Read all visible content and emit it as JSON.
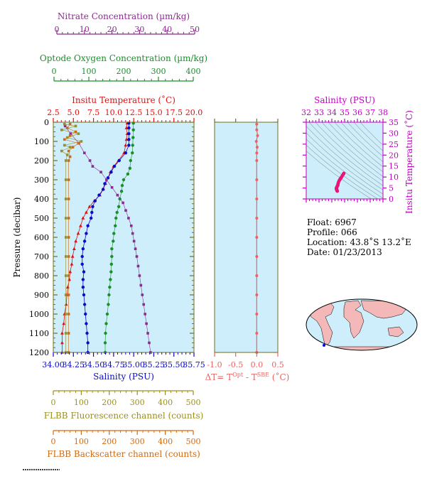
{
  "colors": {
    "nitrate": "#8b2a8f",
    "oxygen": "#1a8f2a",
    "temperature": "#e01010",
    "salinity": "#0a0ac8",
    "fluorescence": "#9a9020",
    "backscatter": "#d06a10",
    "dt": "#f06060",
    "ts_profile": "#e8157a",
    "ts_axis": "#c000c0",
    "panel_bg": "#cdeefa",
    "frame": "#707020"
  },
  "axes": {
    "nitrate": {
      "label": "Nitrate Concentration (µm/kg)",
      "ticks": [
        "0",
        "10",
        "20",
        "30",
        "40",
        "50"
      ]
    },
    "oxygen": {
      "label": "Optode Oxygen Concentration (µm/kg)",
      "ticks": [
        "0",
        "100",
        "200",
        "300",
        "400"
      ]
    },
    "temperature": {
      "label": "Insitu Temperature (˚C)",
      "ticks": [
        "2.5",
        "5.0",
        "7.5",
        "10.0",
        "12.5",
        "15.0",
        "17.5",
        "20.0"
      ]
    },
    "salinity": {
      "label": "Salinity (PSU)",
      "ticks": [
        "34.00",
        "34.25",
        "34.50",
        "34.75",
        "35.00",
        "35.25",
        "35.50",
        "35.75"
      ]
    },
    "pressure": {
      "label": "Pressure (decibar)",
      "ticks": [
        "0",
        "100",
        "200",
        "300",
        "400",
        "500",
        "600",
        "700",
        "800",
        "900",
        "1000",
        "1100",
        "1200"
      ]
    },
    "fluorescence": {
      "label": "FLBB Fluorescence channel (counts)",
      "ticks": [
        "0",
        "100",
        "200",
        "300",
        "400",
        "500"
      ]
    },
    "backscatter": {
      "label": "FLBB Backscatter channel (counts)",
      "ticks": [
        "0",
        "100",
        "200",
        "300",
        "400",
        "500"
      ]
    },
    "dt": {
      "label_prefix": "ΔT= T",
      "sup1": "Opt",
      "label_mid": " - T",
      "sup2": "SBE",
      "label_suffix": " (˚C)",
      "ticks": [
        "-1.0",
        "-0.5",
        "0.0",
        "0.5"
      ]
    },
    "ts_salinity": {
      "label": "Salinity (PSU)",
      "ticks": [
        "32",
        "33",
        "34",
        "35",
        "36",
        "37",
        "38"
      ]
    },
    "ts_temperature": {
      "label": "Insitu Temperature (˚C)",
      "ticks": [
        "0",
        "5",
        "10",
        "15",
        "20",
        "25",
        "30",
        "35"
      ]
    }
  },
  "info": {
    "float": "Float:  6967",
    "profile": "Profile:  066",
    "location": "Location:  43.8˚S  13.2˚E",
    "date": "Date:  01/23/2013"
  },
  "chart_data": [
    {
      "type": "line",
      "y_label": "Pressure (decibar)",
      "ylim": [
        1200,
        0
      ],
      "series": [
        {
          "name": "Insitu Temperature (˚C)",
          "xlim": [
            2.5,
            20.0
          ],
          "points": [
            [
              11.7,
              5
            ],
            [
              11.6,
              30
            ],
            [
              11.7,
              60
            ],
            [
              11.6,
              90
            ],
            [
              11.5,
              120
            ],
            [
              11.3,
              160
            ],
            [
              10.6,
              200
            ],
            [
              10.0,
              230
            ],
            [
              9.6,
              260
            ],
            [
              9.3,
              290
            ],
            [
              9.0,
              320
            ],
            [
              8.7,
              350
            ],
            [
              8.3,
              380
            ],
            [
              7.6,
              410
            ],
            [
              7.0,
              440
            ],
            [
              6.6,
              470
            ],
            [
              6.2,
              500
            ],
            [
              5.9,
              540
            ],
            [
              5.6,
              580
            ],
            [
              5.3,
              620
            ],
            [
              5.1,
              660
            ],
            [
              4.9,
              700
            ],
            [
              4.8,
              740
            ],
            [
              4.6,
              780
            ],
            [
              4.5,
              820
            ],
            [
              4.3,
              860
            ],
            [
              4.2,
              900
            ],
            [
              4.1,
              950
            ],
            [
              3.9,
              1000
            ],
            [
              3.8,
              1050
            ],
            [
              3.6,
              1100
            ],
            [
              3.6,
              1150
            ],
            [
              3.6,
              1200
            ]
          ]
        },
        {
          "name": "Salinity (PSU)",
          "xlim": [
            34.0,
            35.75
          ],
          "points": [
            [
              34.94,
              5
            ],
            [
              34.94,
              30
            ],
            [
              34.94,
              60
            ],
            [
              34.94,
              90
            ],
            [
              34.94,
              120
            ],
            [
              34.9,
              160
            ],
            [
              34.82,
              200
            ],
            [
              34.76,
              230
            ],
            [
              34.72,
              260
            ],
            [
              34.68,
              290
            ],
            [
              34.64,
              320
            ],
            [
              34.62,
              350
            ],
            [
              34.57,
              380
            ],
            [
              34.52,
              410
            ],
            [
              34.49,
              440
            ],
            [
              34.48,
              470
            ],
            [
              34.47,
              500
            ],
            [
              34.43,
              540
            ],
            [
              34.41,
              580
            ],
            [
              34.39,
              620
            ],
            [
              34.37,
              660
            ],
            [
              34.36,
              700
            ],
            [
              34.36,
              740
            ],
            [
              34.38,
              780
            ],
            [
              34.37,
              820
            ],
            [
              34.37,
              860
            ],
            [
              34.38,
              900
            ],
            [
              34.39,
              950
            ],
            [
              34.4,
              1000
            ],
            [
              34.41,
              1050
            ],
            [
              34.42,
              1100
            ],
            [
              34.43,
              1150
            ],
            [
              34.43,
              1200
            ]
          ]
        },
        {
          "name": "Optode Oxygen Concentration (µm/kg)",
          "xlim": [
            0,
            400
          ],
          "points": [
            [
              228,
              5
            ],
            [
              228,
              40
            ],
            [
              227,
              80
            ],
            [
              226,
              120
            ],
            [
              225,
              160
            ],
            [
              220,
              200
            ],
            [
              218,
              240
            ],
            [
              212,
              270
            ],
            [
              200,
              300
            ],
            [
              196,
              330
            ],
            [
              194,
              360
            ],
            [
              189,
              400
            ],
            [
              186,
              440
            ],
            [
              181,
              470
            ],
            [
              178,
              500
            ],
            [
              176,
              540
            ],
            [
              172,
              580
            ],
            [
              170,
              620
            ],
            [
              166,
              660
            ],
            [
              166,
              700
            ],
            [
              165,
              740
            ],
            [
              164,
              780
            ],
            [
              162,
              820
            ],
            [
              160,
              860
            ],
            [
              158,
              900
            ],
            [
              156,
              950
            ],
            [
              153,
              1000
            ],
            [
              150,
              1050
            ],
            [
              148,
              1100
            ],
            [
              147,
              1150
            ],
            [
              147,
              1200
            ]
          ]
        },
        {
          "name": "Nitrate Concentration (µm/kg)",
          "xlim": [
            0,
            50
          ],
          "points": [
            [
              3,
              20
            ],
            [
              5,
              60
            ],
            [
              8,
              110
            ],
            [
              10,
              160
            ],
            [
              12,
              200
            ],
            [
              13,
              230
            ],
            [
              16,
              260
            ],
            [
              18,
              300
            ],
            [
              20,
              340
            ],
            [
              22,
              380
            ],
            [
              24,
              420
            ],
            [
              25,
              460
            ],
            [
              26,
              500
            ],
            [
              27,
              540
            ],
            [
              27.5,
              580
            ],
            [
              28,
              620
            ],
            [
              28.5,
              660
            ],
            [
              29,
              700
            ],
            [
              29.5,
              750
            ],
            [
              30,
              800
            ],
            [
              30.5,
              850
            ],
            [
              31,
              900
            ],
            [
              31.5,
              950
            ],
            [
              32,
              1000
            ],
            [
              32.5,
              1050
            ],
            [
              33,
              1100
            ],
            [
              33.5,
              1150
            ],
            [
              34,
              1200
            ]
          ]
        },
        {
          "name": "FLBB Fluorescence channel (counts)",
          "xlim": [
            0,
            500
          ],
          "points": [
            [
              40,
              10
            ],
            [
              80,
              20
            ],
            [
              30,
              40
            ],
            [
              90,
              60
            ],
            [
              50,
              80
            ],
            [
              100,
              100
            ],
            [
              40,
              120
            ],
            [
              60,
              130
            ],
            [
              30,
              150
            ],
            [
              50,
              170
            ],
            [
              45,
              200
            ],
            [
              45,
              300
            ],
            [
              45,
              400
            ],
            [
              45,
              500
            ],
            [
              45,
              600
            ],
            [
              45,
              700
            ],
            [
              45,
              800
            ],
            [
              45,
              900
            ],
            [
              45,
              1000
            ],
            [
              45,
              1100
            ],
            [
              45,
              1200
            ]
          ]
        },
        {
          "name": "FLBB Backscatter channel (counts)",
          "xlim": [
            0,
            500
          ],
          "points": [
            [
              60,
              10
            ],
            [
              50,
              30
            ],
            [
              80,
              50
            ],
            [
              60,
              70
            ],
            [
              40,
              90
            ],
            [
              90,
              110
            ],
            [
              70,
              130
            ],
            [
              55,
              150
            ],
            [
              60,
              180
            ],
            [
              55,
              200
            ],
            [
              55,
              300
            ],
            [
              55,
              400
            ],
            [
              55,
              500
            ],
            [
              55,
              600
            ],
            [
              55,
              700
            ],
            [
              55,
              800
            ],
            [
              55,
              900
            ],
            [
              55,
              1000
            ],
            [
              55,
              1100
            ],
            [
              55,
              1200
            ]
          ]
        }
      ]
    },
    {
      "type": "line",
      "y_label": "Pressure (decibar)",
      "ylim": [
        1200,
        0
      ],
      "series": [
        {
          "name": "ΔT",
          "xlim": [
            -1.0,
            0.5
          ],
          "points": [
            [
              0.0,
              10
            ],
            [
              0.0,
              40
            ],
            [
              0.02,
              70
            ],
            [
              -0.01,
              100
            ],
            [
              0.01,
              130
            ],
            [
              0.0,
              160
            ],
            [
              0.0,
              200
            ],
            [
              0.0,
              300
            ],
            [
              0.0,
              400
            ],
            [
              0.0,
              500
            ],
            [
              0.0,
              600
            ],
            [
              0.0,
              700
            ],
            [
              0.0,
              800
            ],
            [
              0.0,
              900
            ],
            [
              0.0,
              1000
            ],
            [
              0.0,
              1100
            ],
            [
              0.0,
              1200
            ]
          ]
        }
      ]
    },
    {
      "type": "scatter",
      "x_label": "Salinity (PSU)",
      "y_label": "Insitu Temperature (˚C)",
      "xlim": [
        32,
        38
      ],
      "ylim": [
        0,
        35
      ],
      "series": [
        {
          "name": "profile",
          "points": [
            [
              34.94,
              11.7
            ],
            [
              34.9,
              11.3
            ],
            [
              34.82,
              10.6
            ],
            [
              34.76,
              10.0
            ],
            [
              34.72,
              9.6
            ],
            [
              34.68,
              9.3
            ],
            [
              34.64,
              9.0
            ],
            [
              34.62,
              8.7
            ],
            [
              34.57,
              8.3
            ],
            [
              34.52,
              7.6
            ],
            [
              34.49,
              7.0
            ],
            [
              34.48,
              6.6
            ],
            [
              34.47,
              6.2
            ],
            [
              34.43,
              5.9
            ],
            [
              34.41,
              5.6
            ],
            [
              34.39,
              5.3
            ],
            [
              34.37,
              5.1
            ],
            [
              34.36,
              4.9
            ],
            [
              34.36,
              4.8
            ],
            [
              34.38,
              4.6
            ],
            [
              34.37,
              4.5
            ],
            [
              34.37,
              4.3
            ],
            [
              34.38,
              4.2
            ],
            [
              34.39,
              4.1
            ],
            [
              34.4,
              3.9
            ],
            [
              34.41,
              3.8
            ],
            [
              34.42,
              3.6
            ],
            [
              34.43,
              3.6
            ]
          ]
        }
      ]
    }
  ]
}
